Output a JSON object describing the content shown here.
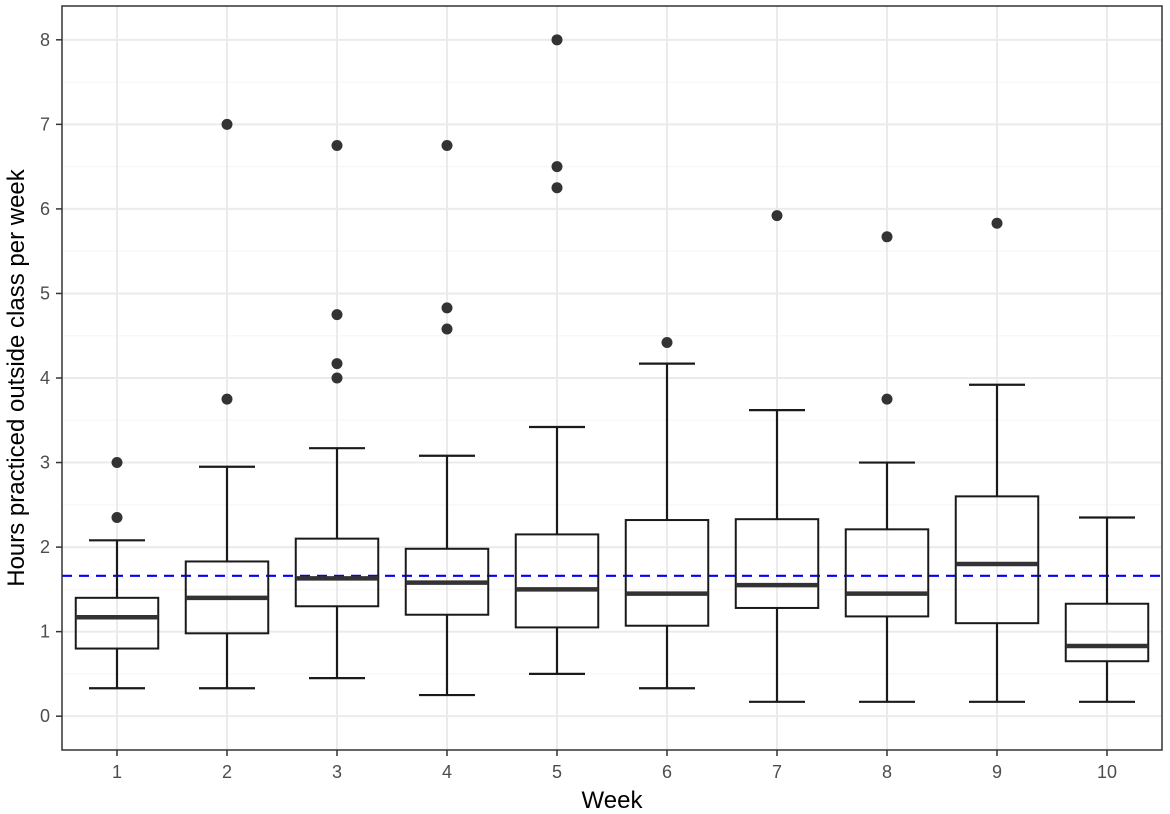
{
  "chart_data": {
    "type": "boxplot",
    "title": "",
    "xlabel": "Week",
    "ylabel": "Hours practiced outside class per week",
    "ylim": [
      -0.4,
      8.4
    ],
    "yticks": [
      "0",
      "1",
      "2",
      "3",
      "4",
      "5",
      "6",
      "7",
      "8"
    ],
    "grid": true,
    "reference_line": {
      "value": 1.66,
      "style": "dashed",
      "color": "#0000ff"
    },
    "categories": [
      "1",
      "2",
      "3",
      "4",
      "5",
      "6",
      "7",
      "8",
      "9",
      "10"
    ],
    "boxes": [
      {
        "week": "1",
        "whisker_low": 0.33,
        "q1": 0.8,
        "median": 1.17,
        "q3": 1.4,
        "whisker_high": 2.08,
        "outliers": [
          2.35,
          3.0
        ]
      },
      {
        "week": "2",
        "whisker_low": 0.33,
        "q1": 0.98,
        "median": 1.4,
        "q3": 1.83,
        "whisker_high": 2.95,
        "outliers": [
          3.75,
          7.0
        ]
      },
      {
        "week": "3",
        "whisker_low": 0.45,
        "q1": 1.3,
        "median": 1.63,
        "q3": 2.1,
        "whisker_high": 3.17,
        "outliers": [
          4.0,
          4.17,
          4.75,
          6.75
        ]
      },
      {
        "week": "4",
        "whisker_low": 0.25,
        "q1": 1.2,
        "median": 1.58,
        "q3": 1.98,
        "whisker_high": 3.08,
        "outliers": [
          4.58,
          4.83,
          6.75
        ]
      },
      {
        "week": "5",
        "whisker_low": 0.5,
        "q1": 1.05,
        "median": 1.5,
        "q3": 2.15,
        "whisker_high": 3.42,
        "outliers": [
          6.25,
          6.5,
          8.0
        ]
      },
      {
        "week": "6",
        "whisker_low": 0.33,
        "q1": 1.07,
        "median": 1.45,
        "q3": 2.32,
        "whisker_high": 4.17,
        "outliers": [
          4.42
        ]
      },
      {
        "week": "7",
        "whisker_low": 0.17,
        "q1": 1.28,
        "median": 1.55,
        "q3": 2.33,
        "whisker_high": 3.62,
        "outliers": [
          5.92
        ]
      },
      {
        "week": "8",
        "whisker_low": 0.17,
        "q1": 1.18,
        "median": 1.45,
        "q3": 2.21,
        "whisker_high": 3.0,
        "outliers": [
          3.75,
          5.67
        ]
      },
      {
        "week": "9",
        "whisker_low": 0.17,
        "q1": 1.1,
        "median": 1.8,
        "q3": 2.6,
        "whisker_high": 3.92,
        "outliers": [
          5.83
        ]
      },
      {
        "week": "10",
        "whisker_low": 0.17,
        "q1": 0.65,
        "median": 0.83,
        "q3": 1.33,
        "whisker_high": 2.35,
        "outliers": []
      }
    ],
    "colors": {
      "panel_border": "#333333",
      "grid_major": "#ebebeb",
      "grid_minor": "#f5f5f5",
      "box": "#1a1a1a",
      "median": "#333333",
      "outlier": "#333333"
    }
  }
}
